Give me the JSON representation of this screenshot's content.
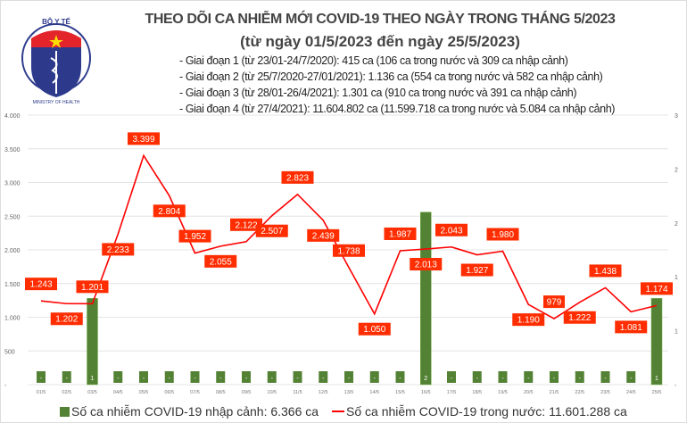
{
  "logo": {
    "text_top": "BỘ Y TẾ",
    "text_bottom": "MINISTRY OF HEALTH"
  },
  "header": {
    "title": "THEO DÕI CA NHIỄM MỚI COVID-19 THEO NGÀY TRONG THÁNG 5/2023",
    "subtitle": "(từ ngày 01/5/2023 đến ngày 25/5/2023)",
    "notes": [
      "- Giai đoạn 1 (từ 23/01-24/7/2020): 415 ca (106 ca trong nước và 309 ca nhập cảnh)",
      "- Giai đoạn 2 (từ 25/7/2020-27/01/2021): 1.136 ca (554 ca trong nước và 582 ca nhập cảnh)",
      "- Giai đoạn 3 (từ 28/01-26/4/2021): 1.301 ca (910 ca trong nước và 391 ca nhập cảnh)",
      "- Giai đoạn 4 (từ 27/4/2021): 11.604.802 ca (11.599.718 ca trong nước và 5.084 ca nhập cảnh)"
    ]
  },
  "chart_data": {
    "type": "bar+line",
    "categories": [
      "01/5",
      "02/5",
      "03/5",
      "04/5",
      "05/5",
      "06/5",
      "07/5",
      "08/5",
      "09/5",
      "10/5",
      "11/5",
      "12/5",
      "13/5",
      "14/5",
      "15/5",
      "16/5",
      "17/5",
      "18/5",
      "19/5",
      "20/5",
      "21/5",
      "22/5",
      "23/5",
      "24/5",
      "25/5"
    ],
    "series": [
      {
        "name": "Số ca nhiễm COVID-19 nhập cảnh: 6.366 ca",
        "type": "bar",
        "axis": "right",
        "color": "#548235",
        "values": [
          0,
          0,
          1,
          0,
          0,
          0,
          0,
          0,
          0,
          0,
          0,
          0,
          0,
          0,
          0,
          2,
          0,
          0,
          0,
          0,
          0,
          0,
          0,
          0,
          1
        ]
      },
      {
        "name": "Số ca nhiễm COVID-19 trong nước: 11.601.288 ca",
        "type": "line",
        "axis": "left",
        "color": "#ff0000",
        "label_bg": "#ff2d00",
        "values": [
          1243,
          1202,
          1201,
          2233,
          3399,
          2804,
          1952,
          2055,
          2122,
          2507,
          2823,
          2439,
          1738,
          1050,
          1987,
          2013,
          2043,
          1927,
          1980,
          1190,
          979,
          1222,
          1438,
          1081,
          1174
        ],
        "labels": [
          "1.243",
          "1.202",
          "1.201",
          "2.233",
          "3.399",
          "2.804",
          "1.952",
          "2.055",
          "2.122",
          "2.507",
          "2.823",
          "2.439",
          "1.738",
          "1.050",
          "1.987",
          "2.013",
          "2.043",
          "1.927",
          "1.980",
          "1.190",
          "979",
          "1.222",
          "1.438",
          "1.081",
          "1.174"
        ]
      }
    ],
    "bar_labels": [
      "-",
      "-",
      "1",
      "-",
      "-",
      "-",
      "-",
      "-",
      "-",
      "-",
      "-",
      "-",
      "-",
      "-",
      "-",
      "2",
      "-",
      "-",
      "-",
      "-",
      "-",
      "-",
      "-",
      "-",
      "1"
    ],
    "left_axis": {
      "range": [
        0,
        4000
      ],
      "ticks": [
        "-",
        "500",
        "1.000",
        "1.500",
        "2.000",
        "2.500",
        "3.000",
        "3.500",
        "4.000"
      ]
    },
    "right_axis": {
      "range": [
        0,
        2.5
      ],
      "ticks": [
        "-",
        "1",
        "1",
        "2",
        "2",
        "3"
      ]
    },
    "grid": true,
    "legend": "bottom"
  }
}
